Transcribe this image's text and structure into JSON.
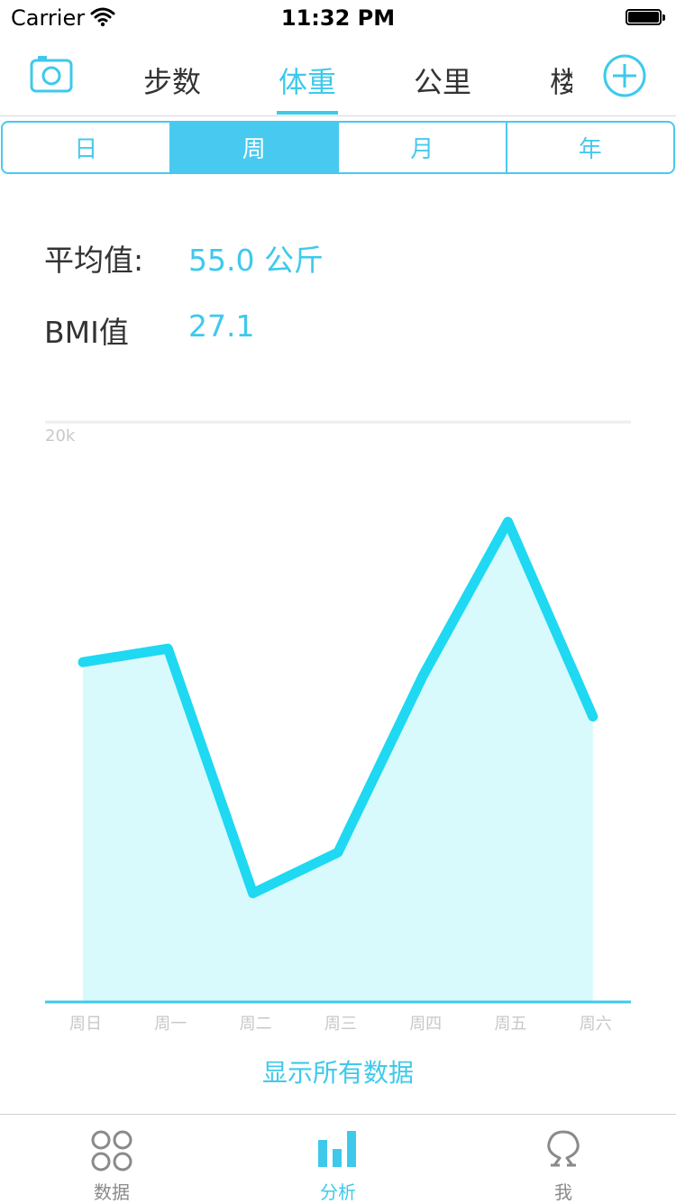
{
  "status_bar": {
    "carrier": "Carrier",
    "time": "11:32 PM"
  },
  "top_nav": {
    "tabs": [
      {
        "label": "步数",
        "active": false
      },
      {
        "label": "体重",
        "active": true
      },
      {
        "label": "公里",
        "active": false
      },
      {
        "label": "楼",
        "active": false
      }
    ]
  },
  "period_segment": [
    {
      "label": "日",
      "active": false
    },
    {
      "label": "周",
      "active": true
    },
    {
      "label": "月",
      "active": false
    },
    {
      "label": "年",
      "active": false
    }
  ],
  "stats": {
    "average_label": "平均值:",
    "average_value": "55.0 公斤",
    "bmi_label": "BMI值",
    "bmi_value": "27.1"
  },
  "chart_data": {
    "type": "area",
    "categories": [
      "周日",
      "周一",
      "周二",
      "周三",
      "周四",
      "周五",
      "周六"
    ],
    "values": [
      7.5,
      7.8,
      2.4,
      3.3,
      7.2,
      10.6,
      6.3
    ],
    "ylim": [
      0,
      12.8
    ],
    "y_tick_labels": [
      {
        "value": 12.8,
        "label": "20k"
      }
    ],
    "title": "",
    "xlabel": "",
    "ylabel": "",
    "colors": {
      "line": "#1fd8f2",
      "fill": "#d8fafd",
      "axis": "#3ec9ec",
      "grid": "#eeeeee"
    }
  },
  "show_all_label": "显示所有数据",
  "tab_bar": {
    "items": [
      {
        "label": "数据",
        "icon": "data-icon",
        "active": false
      },
      {
        "label": "分析",
        "icon": "analysis-icon",
        "active": true
      },
      {
        "label": "我",
        "icon": "profile-icon",
        "active": false
      }
    ]
  },
  "colors": {
    "accent": "#3ec9ec",
    "segment": "#48c9ef",
    "text": "#333333"
  }
}
